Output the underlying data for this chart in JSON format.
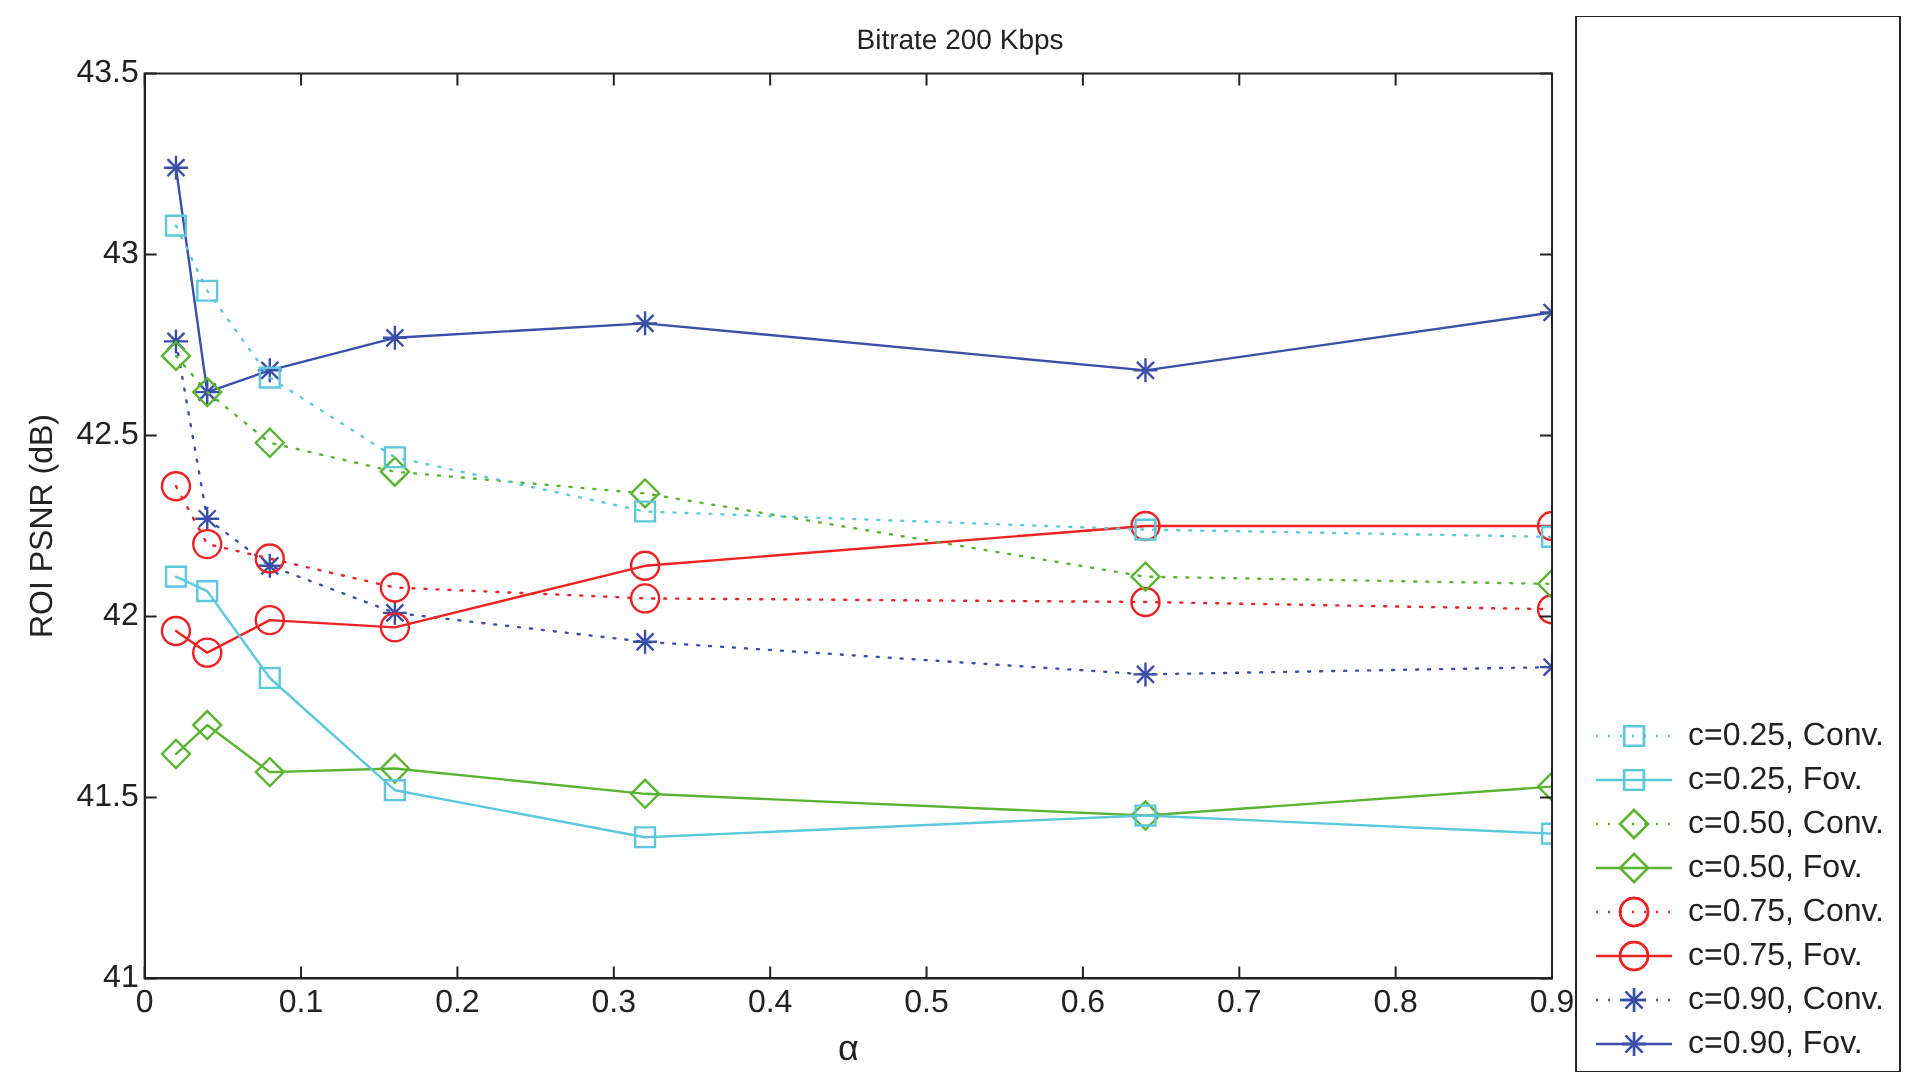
{
  "chart_data": {
    "type": "line",
    "title": "Bitrate 200 Kbps",
    "xlabel": "α",
    "ylabel": "ROI PSNR (dB)",
    "x": [
      0.02,
      0.04,
      0.08,
      0.16,
      0.32,
      0.64,
      0.9
    ],
    "xlim": [
      0,
      0.9
    ],
    "xticks": [
      0,
      0.1,
      0.2,
      0.3,
      0.4,
      0.5,
      0.6,
      0.7,
      0.8,
      0.9
    ],
    "ylim": [
      41,
      43.5
    ],
    "yticks": [
      41,
      41.5,
      42,
      42.5,
      43,
      43.5
    ],
    "grid": false,
    "legend": "bottom right",
    "series": [
      {
        "name": "c=0.25, Conv.",
        "color": "#5bc8dc",
        "marker": "square",
        "line_style": "dotted",
        "values": [
          43.08,
          42.9,
          42.66,
          42.44,
          42.29,
          42.24,
          42.22
        ]
      },
      {
        "name": "c=0.25, Fov.",
        "color": "#5bc8dc",
        "marker": "square",
        "line_style": "solid",
        "values": [
          42.11,
          42.07,
          41.83,
          41.52,
          41.39,
          41.45,
          41.4
        ]
      },
      {
        "name": "c=0.50, Conv.",
        "color": "#5ab432",
        "marker": "diamond",
        "line_style": "dotted",
        "values": [
          42.72,
          42.62,
          42.48,
          42.4,
          42.34,
          42.11,
          42.09
        ]
      },
      {
        "name": "c=0.50, Fov.",
        "color": "#5ab432",
        "marker": "diamond",
        "line_style": "solid",
        "values": [
          41.62,
          41.7,
          41.57,
          41.58,
          41.51,
          41.45,
          41.53
        ]
      },
      {
        "name": "c=0.75, Conv.",
        "color": "#ee2222",
        "marker": "circle",
        "line_style": "dotted",
        "values": [
          42.36,
          42.2,
          42.16,
          42.08,
          42.05,
          42.04,
          42.02
        ]
      },
      {
        "name": "c=0.75, Fov.",
        "color": "#ee2222",
        "marker": "circle",
        "line_style": "solid",
        "values": [
          41.96,
          41.9,
          41.99,
          41.97,
          42.14,
          42.25,
          42.25
        ]
      },
      {
        "name": "c=0.90, Conv.",
        "color": "#3a50a8",
        "marker": "cross",
        "line_style": "dotted",
        "values": [
          42.76,
          42.27,
          42.14,
          42.01,
          41.93,
          41.84,
          41.86
        ]
      },
      {
        "name": "c=0.90, Fov.",
        "color": "#3a50a8",
        "marker": "cross",
        "line_style": "solid",
        "values": [
          43.24,
          42.62,
          42.68,
          42.77,
          42.81,
          42.68,
          42.84
        ]
      }
    ]
  }
}
